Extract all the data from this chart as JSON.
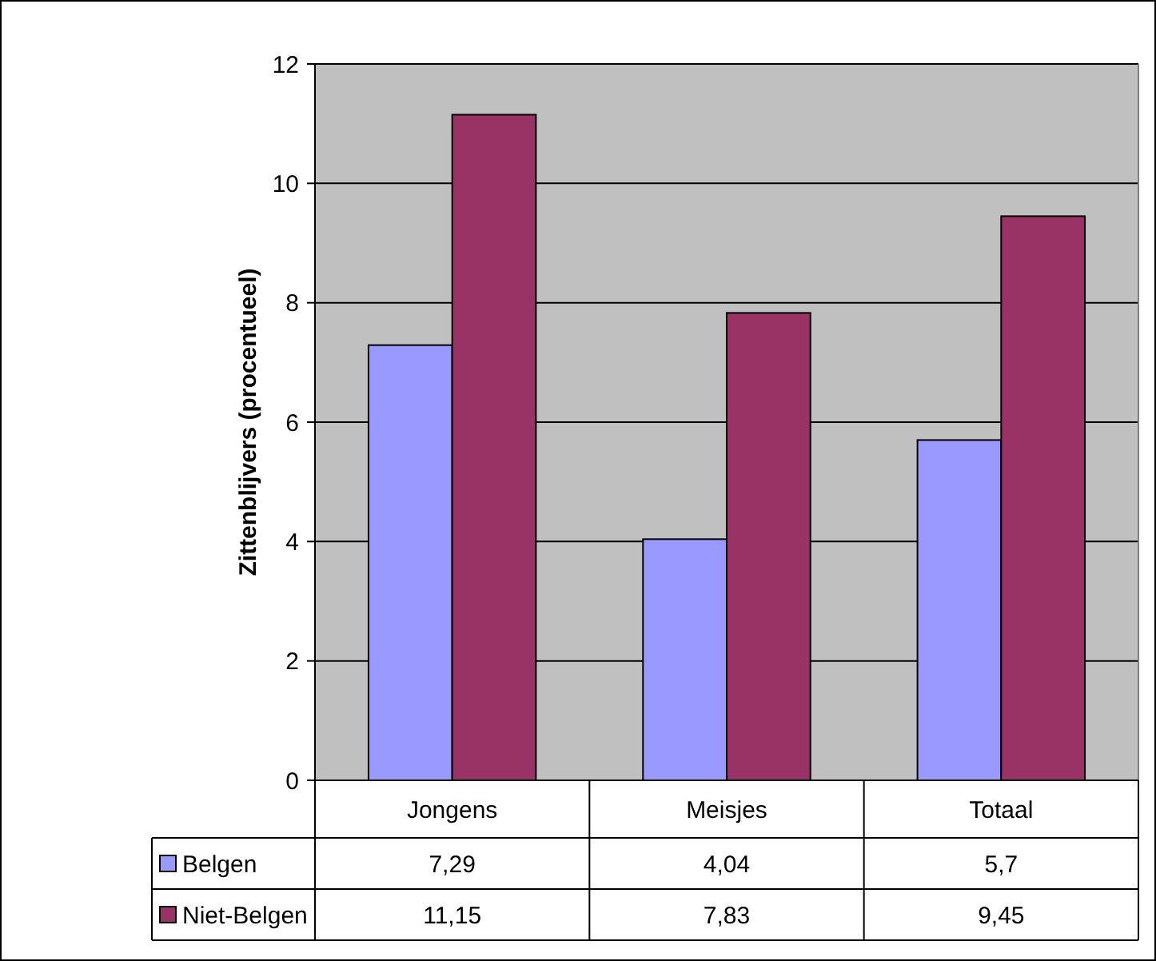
{
  "chart_data": {
    "type": "bar",
    "ylabel": "Zittenblijvers (procentueel)",
    "categories": [
      "Jongens",
      "Meisjes",
      "Totaal"
    ],
    "series": [
      {
        "name": "Belgen",
        "color": "#9999ff",
        "values": [
          7.29,
          4.04,
          5.7
        ],
        "value_labels": [
          "7,29",
          "4,04",
          "5,7"
        ]
      },
      {
        "name": "Niet-Belgen",
        "color": "#993366",
        "values": [
          11.15,
          7.83,
          9.45
        ],
        "value_labels": [
          "11,15",
          "7,83",
          "9,45"
        ]
      }
    ],
    "ylim": [
      0,
      12
    ],
    "yticks": [
      0,
      2,
      4,
      6,
      8,
      10,
      12
    ],
    "grid": "y",
    "legend": "bottom"
  }
}
